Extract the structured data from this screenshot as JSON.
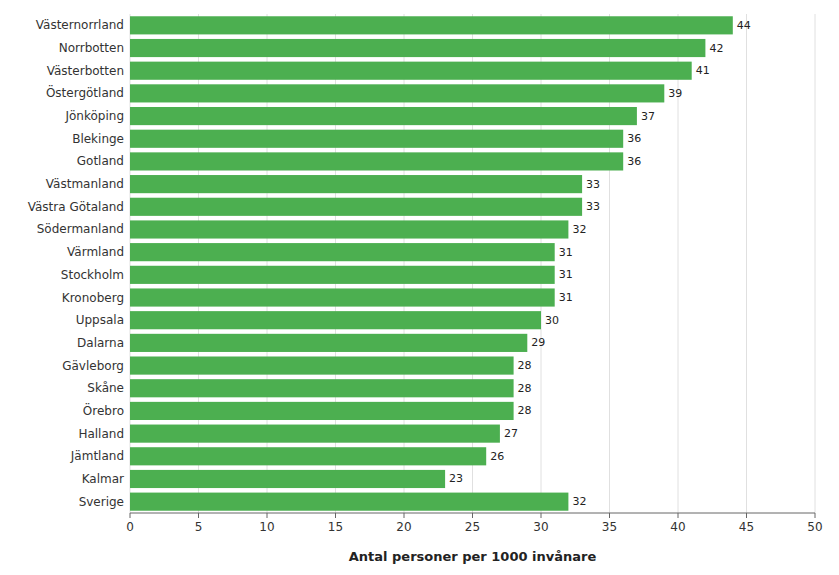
{
  "chart_data": {
    "type": "bar",
    "orientation": "horizontal",
    "categories": [
      "Sverige",
      "Kalmar",
      "Jämtland",
      "Halland",
      "Örebro",
      "Skåne",
      "Gävleborg",
      "Dalarna",
      "Uppsala",
      "Kronoberg",
      "Stockholm",
      "Värmland",
      "Södermanland",
      "Västra Götaland",
      "Västmanland",
      "Gotland",
      "Blekinge",
      "Jönköping",
      "Östergötland",
      "Västerbotten",
      "Norrbotten",
      "Västernorrland"
    ],
    "values": [
      32,
      23,
      26,
      27,
      28,
      28,
      28,
      29,
      30,
      31,
      31,
      31,
      32,
      33,
      33,
      36,
      36,
      37,
      39,
      41,
      42,
      44
    ],
    "color": "#4CAF50",
    "xlabel": "Antal personer per 1000 invånare",
    "xlim": [
      0,
      50
    ],
    "xticks": [
      0,
      5,
      10,
      15,
      20,
      25,
      30,
      35,
      40,
      45,
      50
    ],
    "grid": true,
    "data_labels": true
  }
}
